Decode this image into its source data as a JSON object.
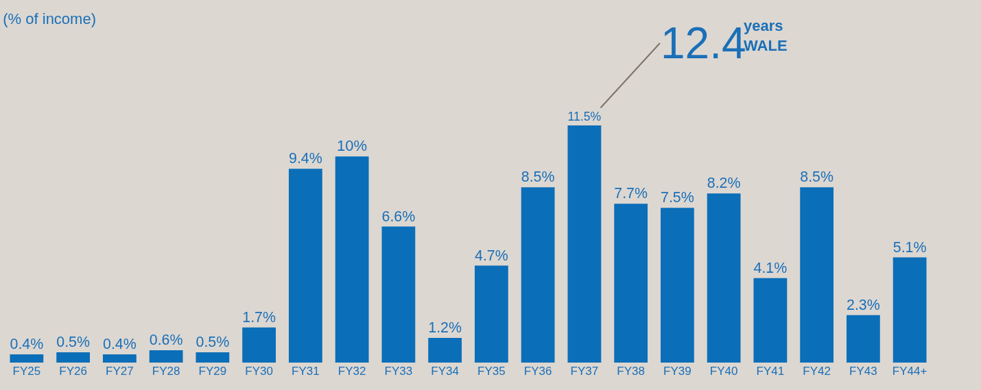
{
  "chart_data": {
    "type": "bar",
    "title": "(% of income)",
    "categories": [
      "FY25",
      "FY26",
      "FY27",
      "FY28",
      "FY29",
      "FY30",
      "FY31",
      "FY32",
      "FY33",
      "FY34",
      "FY35",
      "FY36",
      "FY37",
      "FY38",
      "FY39",
      "FY40",
      "FY41",
      "FY42",
      "FY43",
      "FY44+"
    ],
    "values": [
      0.4,
      0.5,
      0.4,
      0.6,
      0.5,
      1.7,
      9.4,
      10,
      6.6,
      1.2,
      4.7,
      8.5,
      11.5,
      7.7,
      7.5,
      8.2,
      4.1,
      8.5,
      2.3,
      5.1
    ],
    "value_labels": [
      "0.4%",
      "0.5%",
      "0.4%",
      "0.6%",
      "0.5%",
      "1.7%",
      "9.4%",
      "10%",
      "6.6%",
      "1.2%",
      "4.7%",
      "8.5%",
      "11.5%",
      "7.7%",
      "7.5%",
      "8.2%",
      "4.1%",
      "8.5%",
      "2.3%",
      "5.1%"
    ],
    "color": "#0b6eb8",
    "annotations": [
      {
        "text": "12.4",
        "x": "FY37",
        "y": 11.5
      },
      "years\nWALE"
    ],
    "grid": false,
    "legend": false
  }
}
